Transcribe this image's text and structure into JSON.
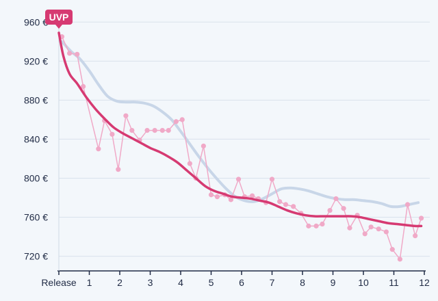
{
  "chart_data": {
    "type": "line",
    "title": "",
    "xlabel": "",
    "ylabel": "",
    "currency_suffix": " €",
    "xlim": [
      0,
      12
    ],
    "ylim": [
      705,
      970
    ],
    "x_ticks": [
      {
        "value": 0,
        "label": "Release"
      },
      {
        "value": 1,
        "label": "1"
      },
      {
        "value": 2,
        "label": "2"
      },
      {
        "value": 3,
        "label": "3"
      },
      {
        "value": 4,
        "label": "4"
      },
      {
        "value": 5,
        "label": "5"
      },
      {
        "value": 6,
        "label": "6"
      },
      {
        "value": 7,
        "label": "7"
      },
      {
        "value": 8,
        "label": "8"
      },
      {
        "value": 9,
        "label": "9"
      },
      {
        "value": 10,
        "label": "10"
      },
      {
        "value": 11,
        "label": "11"
      },
      {
        "value": 12,
        "label": "12"
      }
    ],
    "y_ticks": [
      {
        "value": 720,
        "label": "720 €"
      },
      {
        "value": 760,
        "label": "760 €"
      },
      {
        "value": 800,
        "label": "800 €"
      },
      {
        "value": 840,
        "label": "840 €"
      },
      {
        "value": 880,
        "label": "880 €"
      },
      {
        "value": 920,
        "label": "920 €"
      },
      {
        "value": 960,
        "label": "960 €"
      }
    ],
    "grid": true,
    "annotation": {
      "label": "UVP",
      "x": 0,
      "y": 949,
      "color": "#d63a72"
    },
    "series": [
      {
        "role": "price-points",
        "color": "#f0a9c7",
        "points": [
          [
            0.1,
            945
          ],
          [
            0.35,
            928
          ],
          [
            0.6,
            927
          ],
          [
            0.8,
            894
          ],
          [
            1.3,
            830
          ],
          [
            1.5,
            859
          ],
          [
            1.75,
            845
          ],
          [
            1.95,
            809
          ],
          [
            2.2,
            864
          ],
          [
            2.4,
            849
          ],
          [
            2.65,
            839
          ],
          [
            2.9,
            849
          ],
          [
            3.15,
            849
          ],
          [
            3.4,
            849
          ],
          [
            3.6,
            849
          ],
          [
            3.85,
            858
          ],
          [
            4.05,
            860
          ],
          [
            4.3,
            815
          ],
          [
            4.5,
            800
          ],
          [
            4.75,
            833
          ],
          [
            5.0,
            783
          ],
          [
            5.2,
            781
          ],
          [
            5.45,
            783
          ],
          [
            5.65,
            778
          ],
          [
            5.9,
            799
          ],
          [
            6.1,
            781
          ],
          [
            6.35,
            782
          ],
          [
            6.55,
            779
          ],
          [
            6.8,
            775
          ],
          [
            7.0,
            799
          ],
          [
            7.25,
            776
          ],
          [
            7.45,
            773
          ],
          [
            7.7,
            771
          ],
          [
            7.95,
            764
          ],
          [
            8.2,
            751
          ],
          [
            8.45,
            751
          ],
          [
            8.65,
            753
          ],
          [
            8.9,
            767
          ],
          [
            9.1,
            779
          ],
          [
            9.35,
            769
          ],
          [
            9.55,
            749
          ],
          [
            9.8,
            762
          ],
          [
            10.05,
            743
          ],
          [
            10.25,
            750
          ],
          [
            10.5,
            748
          ],
          [
            10.75,
            745
          ],
          [
            10.95,
            727
          ],
          [
            11.2,
            717
          ],
          [
            11.45,
            773
          ],
          [
            11.7,
            741
          ],
          [
            11.9,
            759
          ]
        ]
      },
      {
        "role": "smooth-trend",
        "color": "#c8d6e8",
        "points": [
          [
            0.1,
            940
          ],
          [
            0.4,
            930
          ],
          [
            0.7,
            922
          ],
          [
            1.0,
            910
          ],
          [
            1.3,
            896
          ],
          [
            1.6,
            884
          ],
          [
            1.9,
            879
          ],
          [
            2.2,
            878
          ],
          [
            2.5,
            878
          ],
          [
            2.8,
            877
          ],
          [
            3.1,
            874
          ],
          [
            3.4,
            868
          ],
          [
            3.7,
            860
          ],
          [
            4.0,
            848
          ],
          [
            4.3,
            835
          ],
          [
            4.6,
            822
          ],
          [
            4.9,
            810
          ],
          [
            5.2,
            799
          ],
          [
            5.5,
            789
          ],
          [
            5.8,
            781
          ],
          [
            6.1,
            777
          ],
          [
            6.4,
            776
          ],
          [
            6.7,
            779
          ],
          [
            7.0,
            784
          ],
          [
            7.3,
            789
          ],
          [
            7.6,
            790
          ],
          [
            7.9,
            789
          ],
          [
            8.2,
            787
          ],
          [
            8.5,
            784
          ],
          [
            8.8,
            781
          ],
          [
            9.1,
            779
          ],
          [
            9.4,
            778
          ],
          [
            9.7,
            778
          ],
          [
            10.0,
            777
          ],
          [
            10.3,
            776
          ],
          [
            10.6,
            774
          ],
          [
            10.9,
            771
          ],
          [
            11.2,
            771
          ],
          [
            11.5,
            773
          ],
          [
            11.8,
            775
          ]
        ]
      },
      {
        "role": "trend",
        "color": "#d63a72",
        "points": [
          [
            0,
            949
          ],
          [
            0.15,
            925
          ],
          [
            0.35,
            907
          ],
          [
            0.6,
            897
          ],
          [
            0.9,
            883
          ],
          [
            1.2,
            871
          ],
          [
            1.5,
            861
          ],
          [
            1.8,
            852
          ],
          [
            2.1,
            846
          ],
          [
            2.4,
            841
          ],
          [
            2.7,
            836
          ],
          [
            3.0,
            831
          ],
          [
            3.3,
            827
          ],
          [
            3.6,
            822
          ],
          [
            3.9,
            816
          ],
          [
            4.2,
            808
          ],
          [
            4.5,
            800
          ],
          [
            4.8,
            792
          ],
          [
            5.1,
            787
          ],
          [
            5.4,
            784
          ],
          [
            5.7,
            781
          ],
          [
            6.0,
            780
          ],
          [
            6.3,
            779
          ],
          [
            6.6,
            777
          ],
          [
            6.9,
            775
          ],
          [
            7.2,
            771
          ],
          [
            7.5,
            767
          ],
          [
            7.8,
            764
          ],
          [
            8.1,
            762
          ],
          [
            8.4,
            761
          ],
          [
            8.7,
            761
          ],
          [
            9.0,
            761
          ],
          [
            9.3,
            761
          ],
          [
            9.6,
            761
          ],
          [
            9.9,
            760
          ],
          [
            10.2,
            758
          ],
          [
            10.5,
            756
          ],
          [
            10.8,
            754
          ],
          [
            11.1,
            753
          ],
          [
            11.4,
            752
          ],
          [
            11.7,
            751
          ],
          [
            11.9,
            751
          ]
        ]
      }
    ]
  }
}
